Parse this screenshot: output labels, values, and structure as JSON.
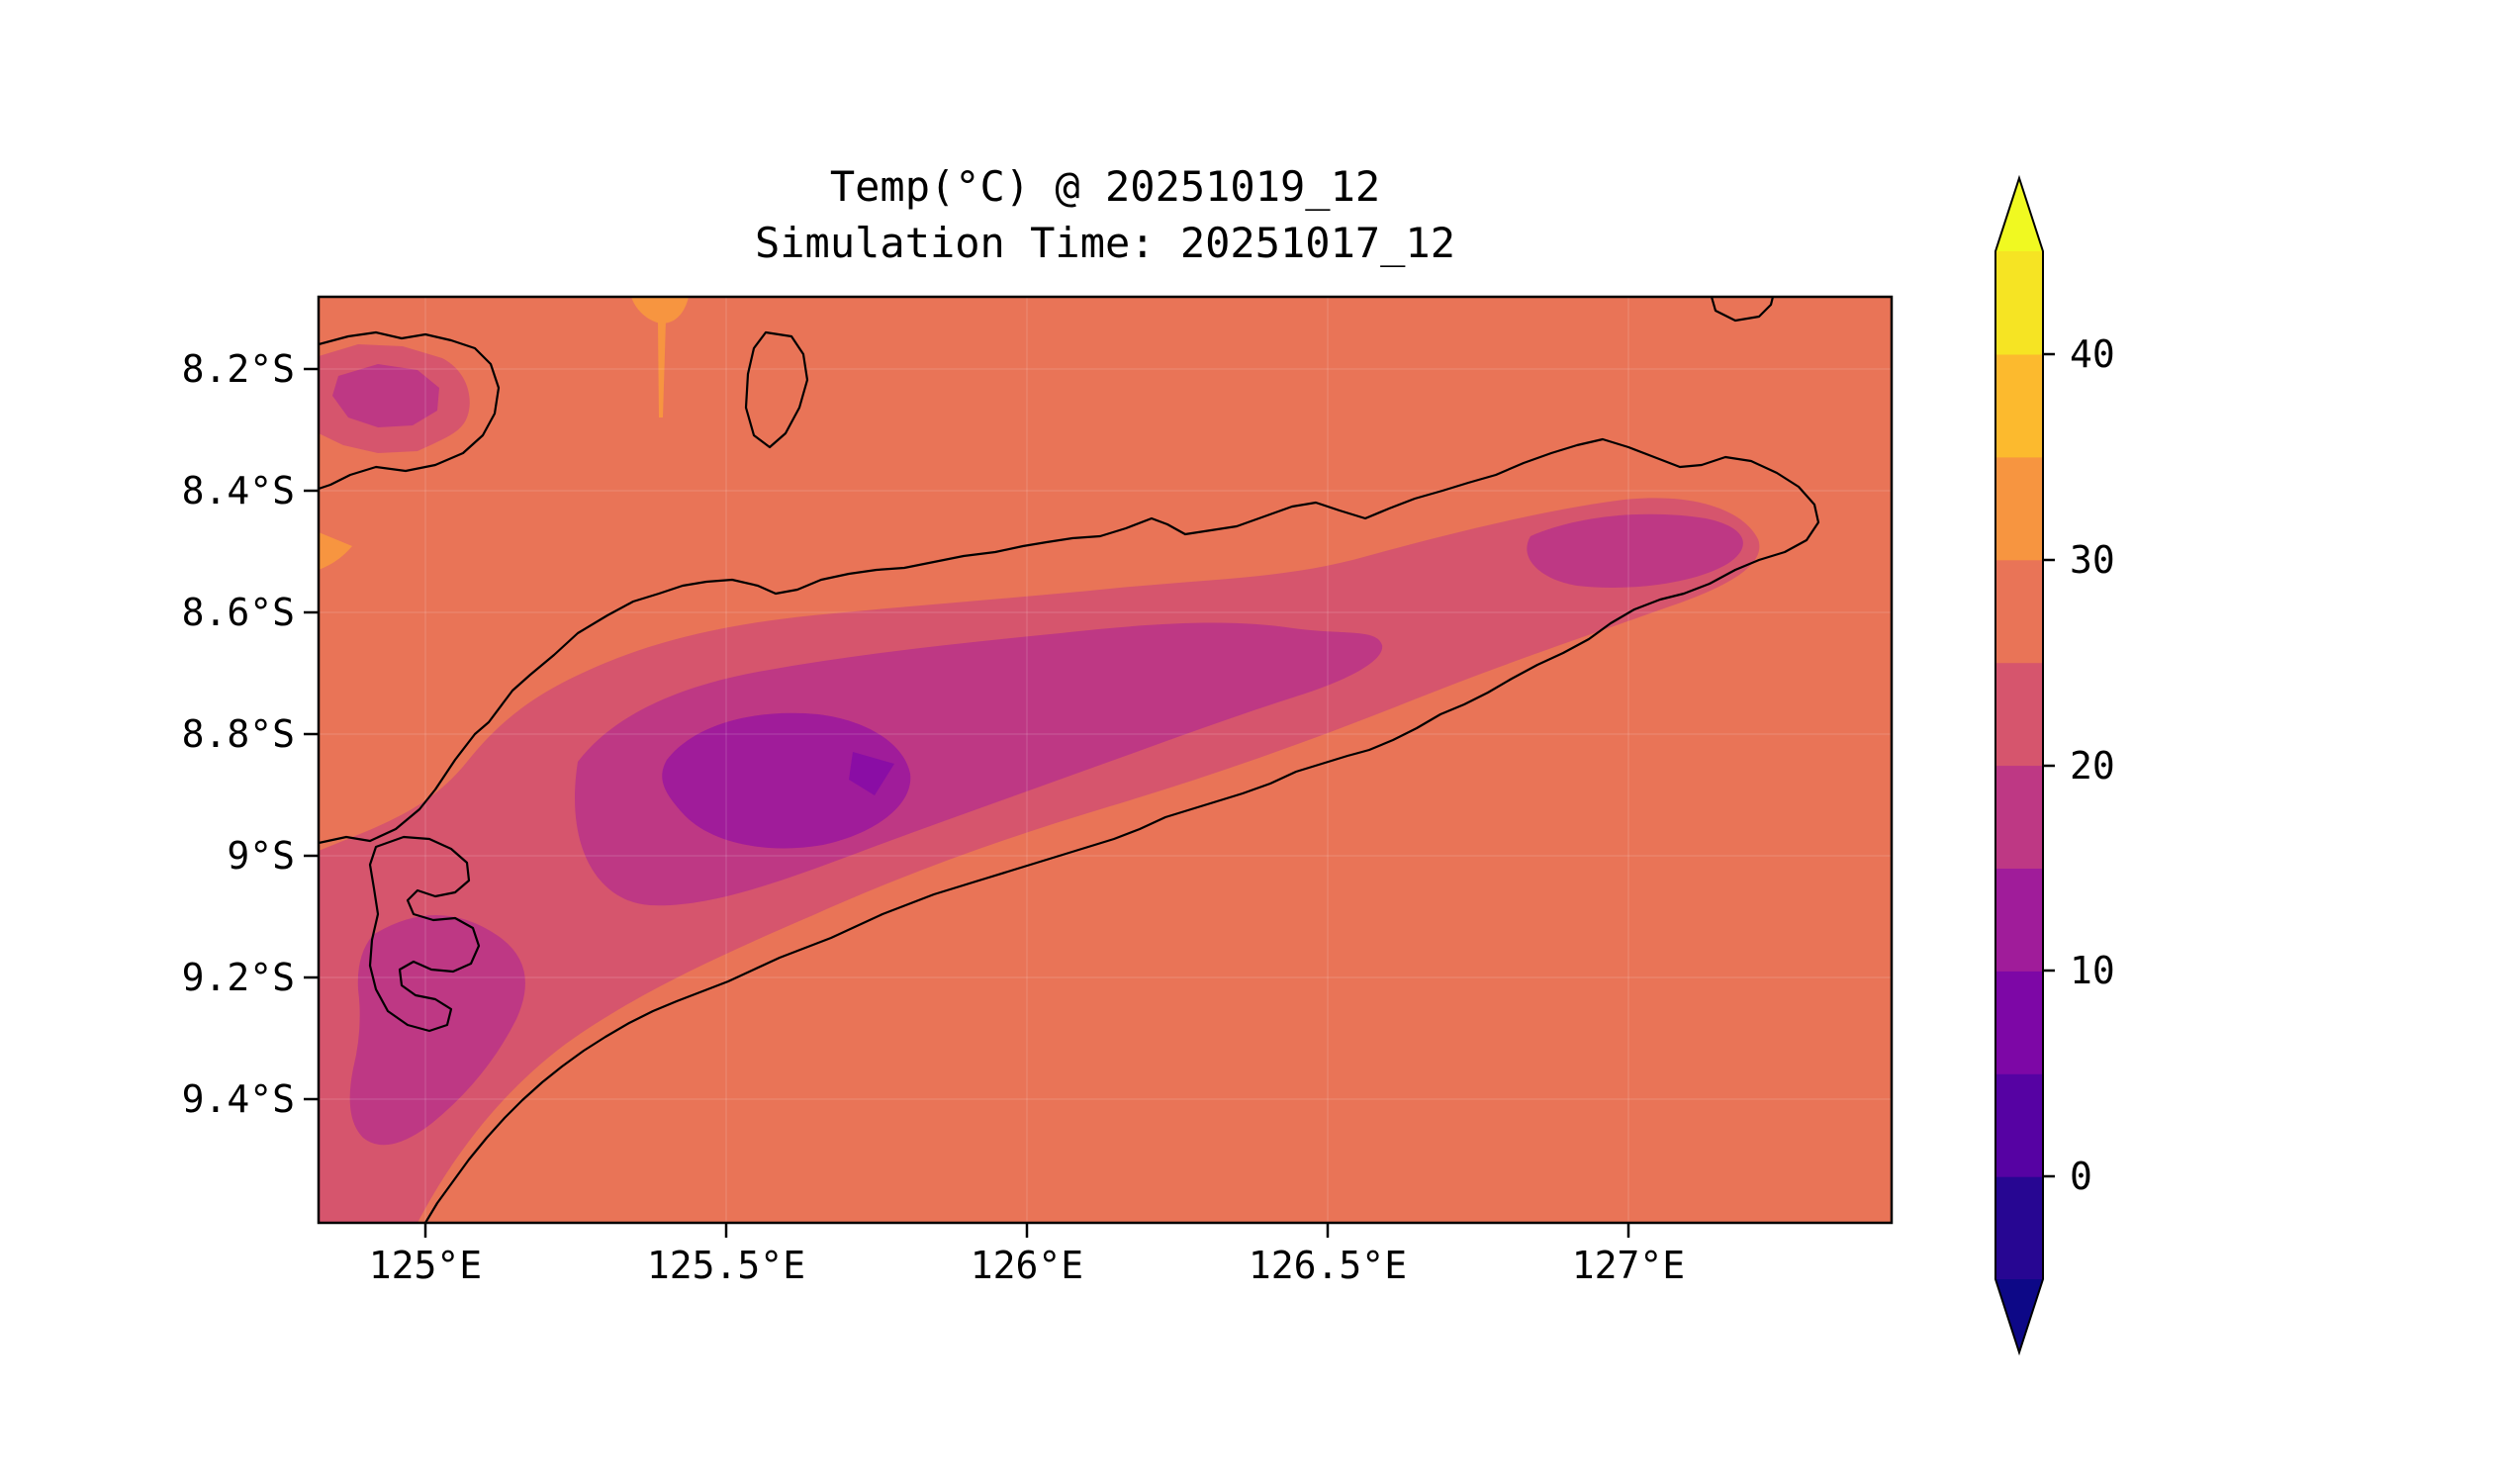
{
  "title": {
    "line1": "Temp(°C) @ 20251019_12",
    "line2": "Simulation Time: 20251017_12"
  },
  "axes": {
    "y_ticks": [
      "8.2°S",
      "8.4°S",
      "8.6°S",
      "8.8°S",
      "9°S",
      "9.2°S",
      "9.4°S"
    ],
    "x_ticks": [
      "125°E",
      "125.5°E",
      "126°E",
      "126.5°E",
      "127°E"
    ]
  },
  "colorbar_labels": [
    "40",
    "30",
    "20",
    "10",
    "0"
  ],
  "chart_data": {
    "type": "heatmap",
    "subtype": "filled_contour_map",
    "title": "Temp(°C) @ 20251019_12",
    "subtitle": "Simulation Time: 20251017_12",
    "variable": "Temp",
    "units": "°C",
    "valid_time": "20251019_12",
    "simulation_time": "20251017_12",
    "x_axis": {
      "tick_labels": [
        "125°E",
        "125.5°E",
        "126°E",
        "126.5°E",
        "127°E"
      ],
      "approx_lon_range_E": [
        124.82,
        127.44
      ]
    },
    "y_axis": {
      "tick_labels": [
        "8.2°S",
        "8.4°S",
        "8.6°S",
        "8.8°S",
        "9°S",
        "9.2°S",
        "9.4°S"
      ],
      "approx_lat_range_S": [
        8.08,
        9.6
      ]
    },
    "colorbar": {
      "tick_values": [
        0,
        10,
        20,
        30,
        40
      ],
      "level_range": [
        -5,
        45
      ],
      "level_step": 5,
      "colormap": "plasma",
      "extend": "both",
      "segment_colors": [
        "#270692",
        "#5602a3",
        "#7d07a6",
        "#a01c9a",
        "#be3884",
        "#d6556d",
        "#e97457",
        "#f79540",
        "#fcba2e",
        "#f6e423"
      ],
      "over_color": "#f0f921",
      "under_color": "#0d0887"
    },
    "band_colors": {
      "b10_15": "#a01c9a",
      "b5_10": "#8a0da5",
      "b15_20": "#be3884",
      "b20_25": "#d6556d",
      "b25_30": "#e97457",
      "b30_35": "#f79540"
    },
    "regions": [
      {
        "name": "background-sea-and-lowlands",
        "temp_band_c": "25-30",
        "extent": "entire domain background"
      },
      {
        "name": "island-highland-band",
        "temp_band_c": "20-25",
        "extent": "elongated band along Timor island axis from ~125.0E,9.4S to ~127.2E,8.45S"
      },
      {
        "name": "central-mountain-band",
        "temp_band_c": "15-20",
        "extent": "inner band along island spine ~125.25E-126.6E and NE patch near 126.9E,8.45S and SW patch near 125.0E,9.15S"
      },
      {
        "name": "cold-core",
        "temp_band_c": "10-15",
        "extent": "blob near 125.5E,8.85S"
      },
      {
        "name": "coldest-notch",
        "temp_band_c": "5-10",
        "extent": "tiny wedge near 125.72E,8.85S"
      },
      {
        "name": "northwest-island-cool-patch",
        "temp_band_c": "15-25",
        "extent": "island in top-left corner ~124.9-125.1E,8.25-8.35S"
      },
      {
        "name": "warm-patches",
        "temp_band_c": "30-35",
        "extent": "small patches at top edge near 125.38E and at left edge near 8.5S"
      }
    ],
    "overlays": [
      "black coastlines of Timor island, Atauro island, top-left island, small islet at top-right edge"
    ]
  }
}
